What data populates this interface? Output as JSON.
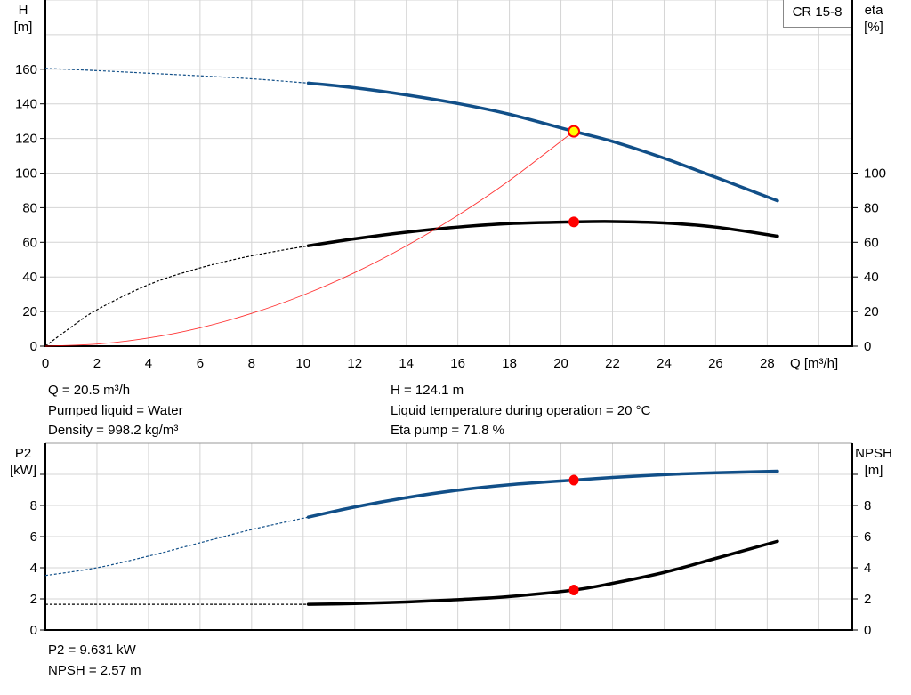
{
  "legend": "CR 15-8",
  "info_top": {
    "left": [
      "Q = 20.5 m³/h",
      "Pumped liquid = Water",
      "Density = 998.2 kg/m³"
    ],
    "right": [
      "H = 124.1 m",
      "Liquid temperature during operation = 20 °C",
      "Eta pump = 71.8 %"
    ]
  },
  "info_bottom": [
    "P2 = 9.631 kW",
    "NPSH = 2.57 m"
  ],
  "colors": {
    "blue": "#114f88",
    "black": "#000000",
    "red": "#ff0000",
    "marker_fill": "#ffff00",
    "grid": "#d4d4d4"
  },
  "chart_data": [
    {
      "type": "line",
      "xlabel": "Q [m³/h]",
      "ylabel_left": [
        "H",
        "[m]"
      ],
      "ylabel_right": [
        "eta",
        "[%]"
      ],
      "xlim": [
        0,
        31.3
      ],
      "ylim": [
        0,
        200
      ],
      "x_ticks": [
        0,
        2,
        4,
        6,
        8,
        10,
        12,
        14,
        16,
        18,
        20,
        22,
        24,
        26,
        28
      ],
      "y_ticks_left": [
        0,
        20,
        40,
        60,
        80,
        100,
        120,
        140,
        160
      ],
      "y_ticks_right": [
        0,
        20,
        40,
        60,
        80,
        100
      ],
      "grid": true,
      "series": [
        {
          "key": "H",
          "color": "blue",
          "dashed": [
            [
              0,
              160.5
            ],
            [
              2,
              159.2
            ],
            [
              4,
              157.7
            ],
            [
              6,
              156.2
            ],
            [
              8,
              154.5
            ],
            [
              10.2,
              152
            ]
          ],
          "solid": [
            [
              10.2,
              152
            ],
            [
              12,
              149.3
            ],
            [
              14,
              145.2
            ],
            [
              16,
              140.2
            ],
            [
              18,
              134
            ],
            [
              20.5,
              124.1
            ],
            [
              22,
              118.3
            ],
            [
              24,
              108.6
            ],
            [
              26,
              97.6
            ],
            [
              28.4,
              84
            ]
          ]
        },
        {
          "key": "eta",
          "color": "black",
          "dashed": [
            [
              0,
              0
            ],
            [
              1,
              11
            ],
            [
              2,
              21
            ],
            [
              4,
              35.5
            ],
            [
              6,
              45.2
            ],
            [
              8,
              52.2
            ],
            [
              10.2,
              58
            ]
          ],
          "solid": [
            [
              10.2,
              58
            ],
            [
              12,
              62
            ],
            [
              14,
              65.8
            ],
            [
              16,
              68.8
            ],
            [
              18,
              70.8
            ],
            [
              20.5,
              71.8
            ],
            [
              22,
              72
            ],
            [
              24,
              71.2
            ],
            [
              26,
              68.8
            ],
            [
              28.4,
              63.5
            ]
          ]
        },
        {
          "key": "system",
          "color": "red",
          "thin": [
            [
              0,
              0
            ],
            [
              2,
              1.2
            ],
            [
              4,
              4.7
            ],
            [
              6,
              10.6
            ],
            [
              8,
              18.9
            ],
            [
              10,
              29.5
            ],
            [
              12,
              42.5
            ],
            [
              14,
              57.9
            ],
            [
              16,
              75.6
            ],
            [
              18,
              95.7
            ],
            [
              20.5,
              124.1
            ]
          ]
        }
      ],
      "duty_point": {
        "Q": 20.5,
        "H": 124.1,
        "eta": 71.8
      }
    },
    {
      "type": "line",
      "ylabel_left": [
        "P2",
        "[kW]"
      ],
      "ylabel_right": [
        "NPSH",
        "[m]"
      ],
      "xlim": [
        0,
        31.3
      ],
      "ylim": [
        0,
        12
      ],
      "x_ticks": [
        0,
        2,
        4,
        6,
        8,
        10,
        12,
        14,
        16,
        18,
        20,
        22,
        24,
        26,
        28,
        30
      ],
      "y_ticks_left": [
        0,
        2,
        4,
        6,
        8
      ],
      "y_ticks_right": [
        0,
        2,
        4,
        6,
        8
      ],
      "grid": true,
      "series": [
        {
          "key": "P2",
          "color": "blue",
          "dashed": [
            [
              0,
              3.5
            ],
            [
              2,
              4.0
            ],
            [
              4,
              4.75
            ],
            [
              6,
              5.6
            ],
            [
              8,
              6.45
            ],
            [
              10.2,
              7.25
            ]
          ],
          "solid": [
            [
              10.2,
              7.25
            ],
            [
              12,
              7.9
            ],
            [
              14,
              8.5
            ],
            [
              16,
              8.98
            ],
            [
              18,
              9.33
            ],
            [
              20.5,
              9.631
            ],
            [
              22,
              9.8
            ],
            [
              24,
              9.98
            ],
            [
              26,
              10.1
            ],
            [
              28.4,
              10.2
            ]
          ]
        },
        {
          "key": "NPSH",
          "color": "black",
          "dashed": [
            [
              0,
              1.65
            ],
            [
              10.2,
              1.65
            ]
          ],
          "solid": [
            [
              10.2,
              1.65
            ],
            [
              12,
              1.7
            ],
            [
              14,
              1.8
            ],
            [
              16,
              1.95
            ],
            [
              18,
              2.15
            ],
            [
              20.5,
              2.57
            ],
            [
              22,
              3.0
            ],
            [
              24,
              3.7
            ],
            [
              26,
              4.6
            ],
            [
              28.4,
              5.7
            ]
          ]
        }
      ],
      "duty_point": {
        "Q": 20.5,
        "P2": 9.631,
        "NPSH": 2.57
      }
    }
  ]
}
